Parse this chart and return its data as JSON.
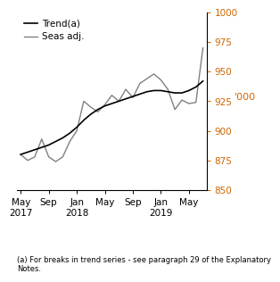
{
  "title": "",
  "ylabel": "'000",
  "ylabel_color": "#cc6600",
  "ylim": [
    850,
    1000
  ],
  "yticks": [
    850,
    875,
    900,
    925,
    950,
    975,
    1000
  ],
  "footnote": "(a) For breaks in trend series - see paragraph 29 of the Explanatory\nNotes.",
  "legend_entries": [
    "Trend(a)",
    "Seas adj."
  ],
  "trend_color": "#000000",
  "seas_color": "#808080",
  "x_tick_labels": [
    "May\n2017",
    "Sep",
    "Jan\n2018",
    "May",
    "Sep",
    "Jan\n2019",
    "May"
  ],
  "x_tick_positions": [
    0,
    4,
    8,
    12,
    16,
    20,
    24
  ],
  "trend_y": [
    880,
    882,
    884,
    886,
    888,
    891,
    894,
    898,
    903,
    909,
    914,
    918,
    921,
    923,
    925,
    927,
    929,
    931,
    933,
    934,
    934,
    933,
    932,
    932,
    934,
    937,
    942
  ],
  "seas_y": [
    880,
    875,
    878,
    893,
    878,
    874,
    878,
    891,
    900,
    925,
    920,
    916,
    922,
    930,
    925,
    935,
    928,
    940,
    944,
    948,
    943,
    935,
    918,
    926,
    923,
    924,
    970
  ],
  "trend_x": [
    0,
    1,
    2,
    3,
    4,
    5,
    6,
    7,
    8,
    9,
    10,
    11,
    12,
    13,
    14,
    15,
    16,
    17,
    18,
    19,
    20,
    21,
    22,
    23,
    24,
    25,
    26
  ],
  "seas_x": [
    0,
    1,
    2,
    3,
    4,
    5,
    6,
    7,
    8,
    9,
    10,
    11,
    12,
    13,
    14,
    15,
    16,
    17,
    18,
    19,
    20,
    21,
    22,
    23,
    24,
    25,
    26
  ]
}
